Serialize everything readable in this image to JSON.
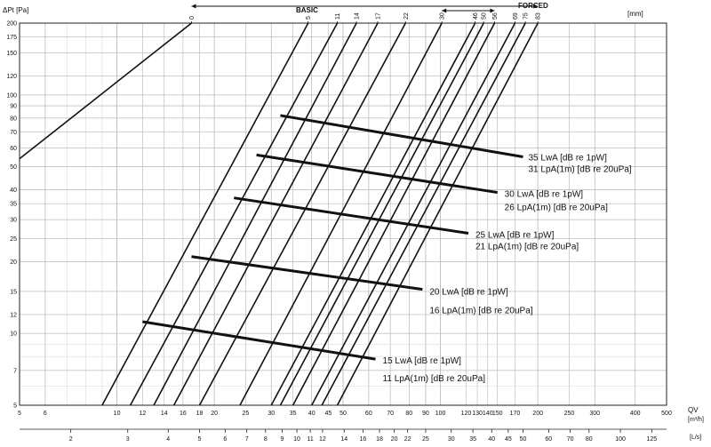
{
  "chart_data": {
    "type": "line",
    "scale": "log-log",
    "grid": true,
    "y_axis": {
      "label": "ΔPt [Pa]",
      "range": [
        5,
        200
      ],
      "ticks": [
        5,
        7,
        10,
        12,
        15,
        20,
        25,
        30,
        35,
        40,
        50,
        60,
        70,
        80,
        90,
        100,
        120,
        150,
        175,
        200
      ],
      "tick_labels": [
        "5",
        "7",
        "10",
        "12",
        "15",
        "20",
        "25",
        "30",
        "35",
        "40",
        "50",
        "60",
        "70",
        "80",
        "90",
        "100",
        "120",
        "150",
        "175",
        "200"
      ]
    },
    "x_axis": {
      "label": "QV",
      "unit": "[m³/h]",
      "range": [
        5,
        500
      ],
      "ticks": [
        5,
        6,
        10,
        12,
        14,
        16,
        18,
        20,
        25,
        30,
        35,
        40,
        45,
        50,
        60,
        70,
        80,
        90,
        100,
        120,
        130,
        140,
        150,
        170,
        200,
        250,
        300,
        400,
        500
      ],
      "tick_labels": [
        "5",
        "6",
        "10",
        "12",
        "14",
        "16",
        "18",
        "20",
        "25",
        "30",
        "35",
        "40",
        "45",
        "50",
        "60",
        "70",
        "80",
        "90",
        "100",
        "120",
        "130",
        "140",
        "150",
        "170",
        "200",
        "250",
        "300",
        "400",
        "500"
      ]
    },
    "x2_axis": {
      "unit": "[L/s]",
      "ticks": [
        2,
        3,
        4,
        5,
        6,
        7,
        8,
        9,
        10,
        11,
        12,
        14,
        16,
        18,
        20,
        22,
        25,
        30,
        35,
        40,
        45,
        50,
        60,
        70,
        80,
        100,
        125
      ],
      "tick_labels": [
        "2",
        "3",
        "4",
        "5",
        "6",
        "7",
        "8",
        "9",
        "10",
        "11",
        "12",
        "14",
        "16",
        "18",
        "20",
        "22",
        "25",
        "30",
        "35",
        "40",
        "45",
        "50",
        "60",
        "70",
        "80",
        "100",
        "125"
      ]
    },
    "opening_axis": {
      "unit": "[mm]",
      "basic_label": "BASIC",
      "forced_label": "FORCED",
      "positions": [
        {
          "label": "0",
          "q_at_200pa": 17
        },
        {
          "label": "5",
          "q_at_200pa": 39
        },
        {
          "label": "11",
          "q_at_200pa": 48
        },
        {
          "label": "14",
          "q_at_200pa": 55
        },
        {
          "label": "17",
          "q_at_200pa": 64
        },
        {
          "label": "22",
          "q_at_200pa": 78
        },
        {
          "label": "30",
          "q_at_200pa": 101
        },
        {
          "label": "46",
          "q_at_200pa": 128
        },
        {
          "label": "50",
          "q_at_200pa": 136
        },
        {
          "label": "56",
          "q_at_200pa": 147
        },
        {
          "label": "69",
          "q_at_200pa": 170
        },
        {
          "label": "75",
          "q_at_200pa": 183
        },
        {
          "label": "83",
          "q_at_200pa": 200
        }
      ]
    },
    "series": [
      {
        "label": "0",
        "points": [
          [
            5,
            54
          ],
          [
            17,
            200
          ]
        ]
      },
      {
        "label": "5",
        "points": [
          [
            9,
            5
          ],
          [
            39,
            200
          ]
        ]
      },
      {
        "label": "11",
        "points": [
          [
            11,
            5
          ],
          [
            48,
            200
          ]
        ]
      },
      {
        "label": "14",
        "points": [
          [
            13,
            5
          ],
          [
            55,
            200
          ]
        ]
      },
      {
        "label": "17",
        "points": [
          [
            15,
            5
          ],
          [
            64,
            200
          ]
        ]
      },
      {
        "label": "22",
        "points": [
          [
            18,
            5
          ],
          [
            78,
            200
          ]
        ]
      },
      {
        "label": "30",
        "points": [
          [
            24,
            5
          ],
          [
            101,
            200
          ]
        ]
      },
      {
        "label": "46",
        "points": [
          [
            30,
            5
          ],
          [
            128,
            200
          ]
        ]
      },
      {
        "label": "50",
        "points": [
          [
            32,
            5
          ],
          [
            136,
            200
          ]
        ]
      },
      {
        "label": "56",
        "points": [
          [
            35,
            5
          ],
          [
            147,
            200
          ]
        ]
      },
      {
        "label": "69",
        "points": [
          [
            40,
            5
          ],
          [
            170,
            200
          ]
        ]
      },
      {
        "label": "75",
        "points": [
          [
            43,
            5
          ],
          [
            183,
            200
          ]
        ]
      },
      {
        "label": "83",
        "points": [
          [
            48,
            5
          ],
          [
            200,
            200
          ]
        ]
      }
    ],
    "sound_lines": [
      {
        "lwa": "15 LwA [dB re 1pW]",
        "lpa": "11 LpA(1m) [dB re 20uPa]",
        "points": [
          [
            12,
            11.2
          ],
          [
            63,
            7.8
          ]
        ]
      },
      {
        "lwa": "20 LwA [dB re 1pW]",
        "lpa": "16 LpA(1m) [dB re 20uPa]",
        "points": [
          [
            17,
            21
          ],
          [
            88,
            15.3
          ]
        ]
      },
      {
        "lwa": "25 LwA [dB re 1pW]",
        "lpa": "21 LpA(1m) [dB re 20uPa]",
        "points": [
          [
            23,
            37
          ],
          [
            122,
            26.3
          ]
        ]
      },
      {
        "lwa": "30 LwA [dB re 1pW]",
        "lpa": "26 LpA(1m) [dB re 20uPa]",
        "points": [
          [
            27,
            56
          ],
          [
            150,
            39
          ]
        ]
      },
      {
        "lwa": "35 LwA [dB re 1pW]",
        "lpa": "31 LpA(1m) [dB re 20uPa]",
        "points": [
          [
            32,
            82
          ],
          [
            180,
            55
          ]
        ]
      }
    ]
  }
}
